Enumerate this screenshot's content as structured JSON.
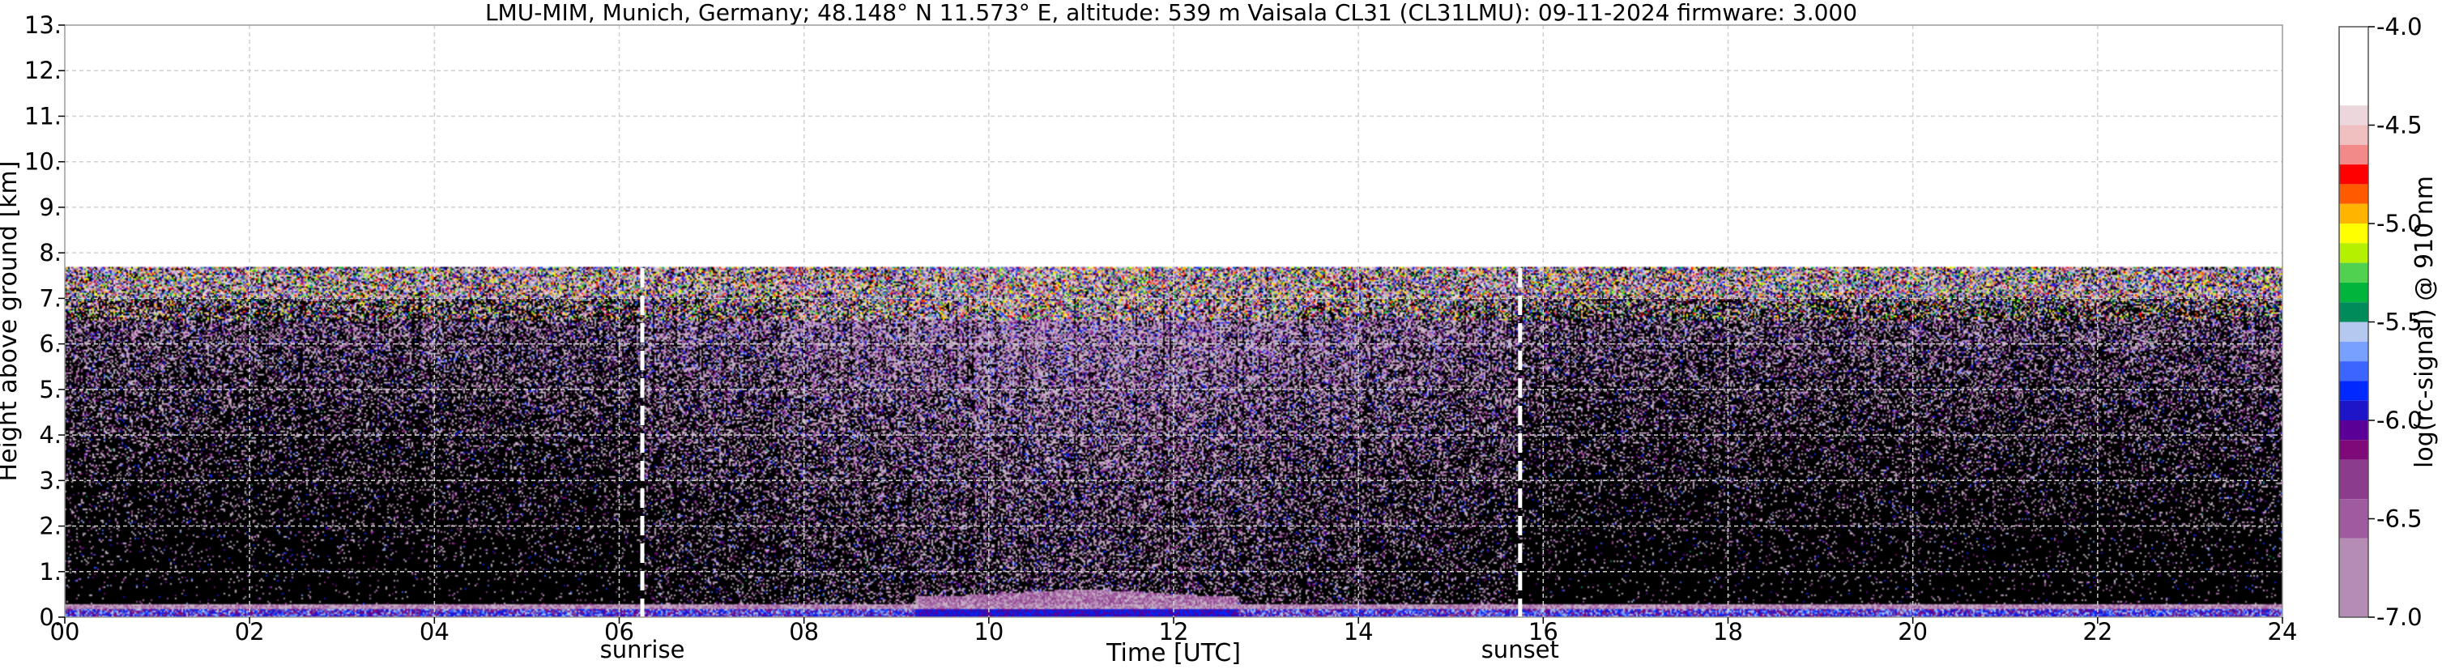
{
  "chart_data": {
    "type": "heatmap",
    "title": "LMU-MIM, Munich, Germany; 48.148° N 11.573° E, altitude: 539 m    Vaisala CL31 (CL31LMU): 09-11-2024    firmware: 3.000",
    "xlabel": "Time [UTC]",
    "ylabel": "Height above ground [km]",
    "xlim": [
      0,
      24
    ],
    "ylim": [
      0,
      13
    ],
    "x_ticks": [
      "00",
      "02",
      "04",
      "06",
      "08",
      "10",
      "12",
      "14",
      "16",
      "18",
      "20",
      "22",
      "24"
    ],
    "y_ticks": [
      "0.",
      "1.",
      "2.",
      "3.",
      "4.",
      "5.",
      "6.",
      "7.",
      "8.",
      "9.",
      "10.",
      "11.",
      "12.",
      "13."
    ],
    "grid": true,
    "signal_top_km": 7.7,
    "events": [
      {
        "label": "sunrise",
        "time": 6.25
      },
      {
        "label": "sunset",
        "time": 15.75
      }
    ],
    "colorbar": {
      "label": "log(rc-signal) @ 910 nm",
      "ticks": [
        "-4.0",
        "-4.5",
        "-5.0",
        "-5.5",
        "-6.0",
        "-6.5",
        "-7.0"
      ],
      "range": [
        -7.0,
        -4.0
      ],
      "colors": [
        {
          "v": -4.0,
          "c": "#ffffff"
        },
        {
          "v": -4.4,
          "c": "#ecd8dc"
        },
        {
          "v": -4.5,
          "c": "#f0c0c0"
        },
        {
          "v": -4.6,
          "c": "#f28a8a"
        },
        {
          "v": -4.7,
          "c": "#ff0000"
        },
        {
          "v": -4.8,
          "c": "#ff5a00"
        },
        {
          "v": -4.9,
          "c": "#ffb400"
        },
        {
          "v": -5.0,
          "c": "#ffff00"
        },
        {
          "v": -5.1,
          "c": "#b4f000"
        },
        {
          "v": -5.2,
          "c": "#50d250"
        },
        {
          "v": -5.3,
          "c": "#00b43c"
        },
        {
          "v": -5.4,
          "c": "#008c5a"
        },
        {
          "v": -5.5,
          "c": "#b4c8f0"
        },
        {
          "v": -5.6,
          "c": "#78a0ff"
        },
        {
          "v": -5.7,
          "c": "#3c64ff"
        },
        {
          "v": -5.8,
          "c": "#0028ff"
        },
        {
          "v": -5.9,
          "c": "#1e14c8"
        },
        {
          "v": -6.0,
          "c": "#5a0096"
        },
        {
          "v": -6.1,
          "c": "#7d0a78"
        },
        {
          "v": -6.2,
          "c": "#8c3c8c"
        },
        {
          "v": -6.4,
          "c": "#a05aa0"
        },
        {
          "v": -6.6,
          "c": "#b48cb4"
        },
        {
          "v": -7.0,
          "c": "#c8b4c8"
        }
      ]
    }
  }
}
